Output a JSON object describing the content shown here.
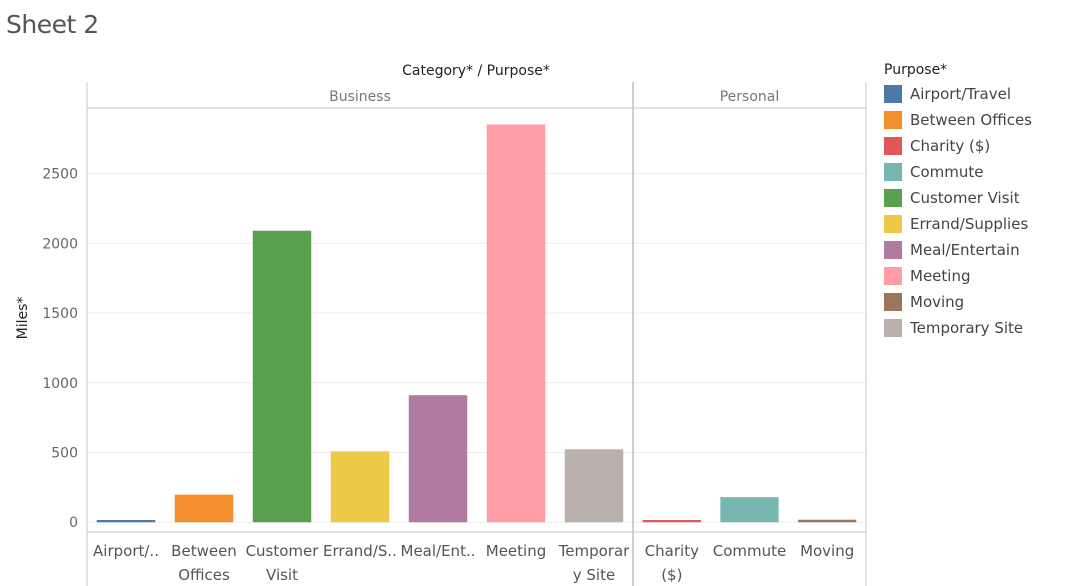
{
  "page": {
    "title": "Sheet 2"
  },
  "chart_data": {
    "type": "bar",
    "column_header": "Category* / Purpose*",
    "ylabel": "Miles*",
    "ylim": [
      -70,
      2970
    ],
    "yticks": [
      0,
      500,
      1000,
      1500,
      2000,
      2500
    ],
    "grid": true,
    "legend_position": "right",
    "legend_title": "Purpose*",
    "panels": [
      {
        "name": "Business",
        "bars": [
          {
            "category": "Airport/..",
            "purpose": "Airport/Travel",
            "value": 16
          },
          {
            "category": "Between Offices",
            "purpose": "Between Offices",
            "value": 198
          },
          {
            "category": "Customer Visit",
            "purpose": "Customer Visit",
            "value": 2090
          },
          {
            "category": "Errand/S..",
            "purpose": "Errand/Supplies",
            "value": 508
          },
          {
            "category": "Meal/Ent..",
            "purpose": "Meal/Entertain",
            "value": 911
          },
          {
            "category": "Meeting",
            "purpose": "Meeting",
            "value": 2852
          },
          {
            "category": "Temporary Site",
            "purpose": "Temporary Site",
            "value": 523
          }
        ]
      },
      {
        "name": "Personal",
        "bars": [
          {
            "category": "Charity ($)",
            "purpose": "Charity ($)",
            "value": 16
          },
          {
            "category": "Commute",
            "purpose": "Commute",
            "value": 180
          },
          {
            "category": "Moving",
            "purpose": "Moving",
            "value": 18
          }
        ]
      }
    ],
    "tick_lines": {
      "Airport/..": [
        "Airport/.."
      ],
      "Between Offices": [
        "Between",
        "Offices"
      ],
      "Customer Visit": [
        "Customer",
        "Visit"
      ],
      "Errand/S..": [
        "Errand/S.."
      ],
      "Meal/Ent..": [
        "Meal/Ent.."
      ],
      "Meeting": [
        "Meeting"
      ],
      "Temporary Site": [
        "Temporar",
        "y Site"
      ],
      "Charity ($)": [
        "Charity",
        "($)"
      ],
      "Commute": [
        "Commute"
      ],
      "Moving": [
        "Moving"
      ]
    },
    "legend": [
      {
        "label": "Airport/Travel",
        "color": "#4e79a7"
      },
      {
        "label": "Between Offices",
        "color": "#f28e2b"
      },
      {
        "label": "Charity ($)",
        "color": "#e15759"
      },
      {
        "label": "Commute",
        "color": "#76b7b2"
      },
      {
        "label": "Customer Visit",
        "color": "#59a14f"
      },
      {
        "label": "Errand/Supplies",
        "color": "#edc948"
      },
      {
        "label": "Meal/Entertain",
        "color": "#b07aa1"
      },
      {
        "label": "Meeting",
        "color": "#ff9da7"
      },
      {
        "label": "Moving",
        "color": "#9c755f"
      },
      {
        "label": "Temporary Site",
        "color": "#bab0ac"
      }
    ]
  }
}
